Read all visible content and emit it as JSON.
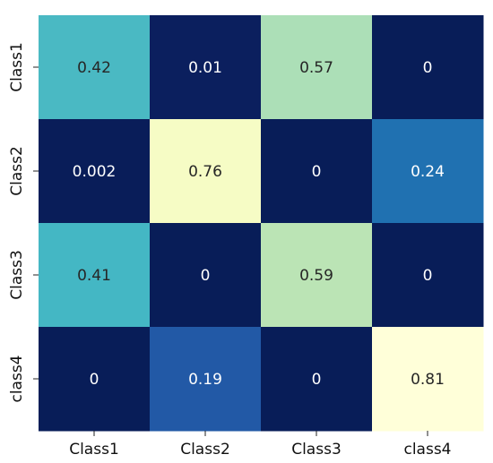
{
  "chart_data": {
    "type": "heatmap",
    "title": "",
    "xlabel": "",
    "ylabel": "",
    "x_categories": [
      "Class1",
      "Class2",
      "Class3",
      "class4"
    ],
    "y_categories": [
      "Class1",
      "Class2",
      "Class3",
      "class4"
    ],
    "values": [
      [
        0.42,
        0.01,
        0.57,
        0
      ],
      [
        0.002,
        0.76,
        0,
        0.24
      ],
      [
        0.41,
        0,
        0.59,
        0
      ],
      [
        0,
        0.19,
        0,
        0.81
      ]
    ],
    "value_labels": [
      [
        "0.42",
        "0.01",
        "0.57",
        "0"
      ],
      [
        "0.002",
        "0.76",
        "0",
        "0.24"
      ],
      [
        "0.41",
        "0",
        "0.59",
        "0"
      ],
      [
        "0",
        "0.19",
        "0",
        "0.81"
      ]
    ],
    "colormap": "YlGnBu",
    "colorbar": false,
    "grid": false,
    "annotations_shown": true,
    "colors": {
      "low": "#081d58",
      "high": "#ffffd9"
    }
  }
}
